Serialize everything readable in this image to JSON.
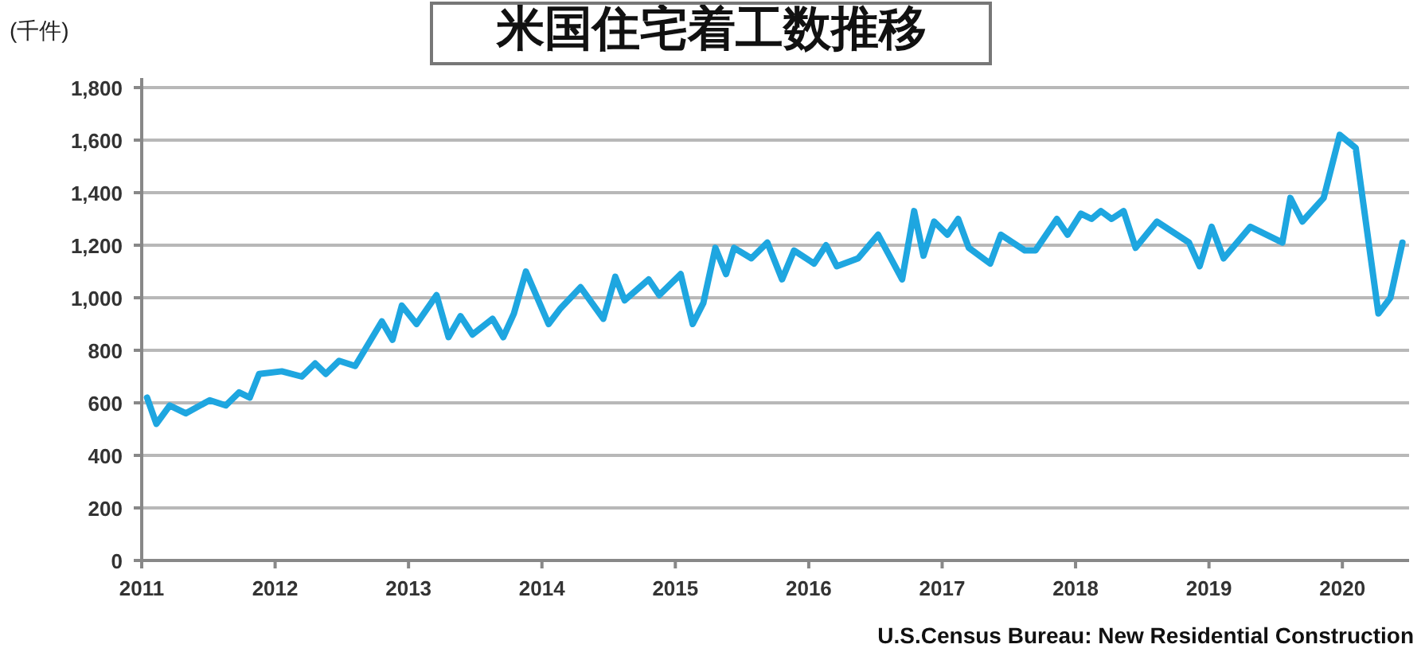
{
  "chart_data": {
    "type": "line",
    "title": "米国住宅着工数推移",
    "ylabel": "(千件)",
    "annotations": [
      "U.S.Census Bureau: New Residential Construction"
    ],
    "xlim": [
      2011,
      2020.5
    ],
    "xticks": [
      2011,
      2012,
      2013,
      2014,
      2015,
      2016,
      2017,
      2018,
      2019,
      2020
    ],
    "ylim": [
      0,
      1800
    ],
    "yticks": [
      0,
      200,
      400,
      600,
      800,
      {
        "value": 1000,
        "label": "1,000"
      },
      {
        "value": 1200,
        "label": "1,200"
      },
      {
        "value": 1400,
        "label": "1,400"
      },
      {
        "value": 1600,
        "label": "1,600"
      },
      {
        "value": 1800,
        "label": "1,800"
      }
    ],
    "grid": "y",
    "marker": "none",
    "line_style": "solid",
    "series": [
      {
        "color": "#1ea6e0",
        "x": [
          2011.04,
          2011.11,
          2011.21,
          2011.33,
          2011.51,
          2011.63,
          2011.73,
          2011.81,
          2011.88,
          2012.05,
          2012.2,
          2012.3,
          2012.38,
          2012.48,
          2012.6,
          2012.8,
          2012.88,
          2012.95,
          2013.06,
          2013.21,
          2013.3,
          2013.39,
          2013.48,
          2013.63,
          2013.71,
          2013.79,
          2013.88,
          2014.05,
          2014.14,
          2014.29,
          2014.46,
          2014.55,
          2014.62,
          2014.8,
          2014.88,
          2015.04,
          2015.13,
          2015.21,
          2015.3,
          2015.38,
          2015.44,
          2015.57,
          2015.69,
          2015.8,
          2015.89,
          2016.04,
          2016.13,
          2016.21,
          2016.37,
          2016.52,
          2016.7,
          2016.79,
          2016.86,
          2016.94,
          2017.04,
          2017.12,
          2017.2,
          2017.36,
          2017.44,
          2017.62,
          2017.7,
          2017.86,
          2017.94,
          2018.04,
          2018.12,
          2018.19,
          2018.27,
          2018.36,
          2018.45,
          2018.61,
          2018.85,
          2018.93,
          2019.02,
          2019.11,
          2019.31,
          2019.55,
          2019.61,
          2019.7,
          2019.86,
          2019.98,
          2020.1,
          2020.27,
          2020.36,
          2020.45
        ],
        "values": [
          620,
          520,
          590,
          560,
          610,
          590,
          640,
          620,
          710,
          720,
          700,
          750,
          710,
          760,
          740,
          910,
          840,
          970,
          900,
          1010,
          850,
          930,
          860,
          920,
          850,
          940,
          1100,
          900,
          960,
          1040,
          920,
          1080,
          990,
          1070,
          1010,
          1090,
          900,
          980,
          1190,
          1090,
          1190,
          1150,
          1210,
          1070,
          1180,
          1130,
          1200,
          1120,
          1150,
          1240,
          1070,
          1330,
          1160,
          1290,
          1240,
          1300,
          1190,
          1130,
          1240,
          1180,
          1180,
          1300,
          1240,
          1320,
          1300,
          1330,
          1300,
          1330,
          1190,
          1290,
          1210,
          1120,
          1270,
          1150,
          1270,
          1210,
          1380,
          1290,
          1380,
          1620,
          1570,
          940,
          1000,
          1210
        ]
      }
    ]
  }
}
